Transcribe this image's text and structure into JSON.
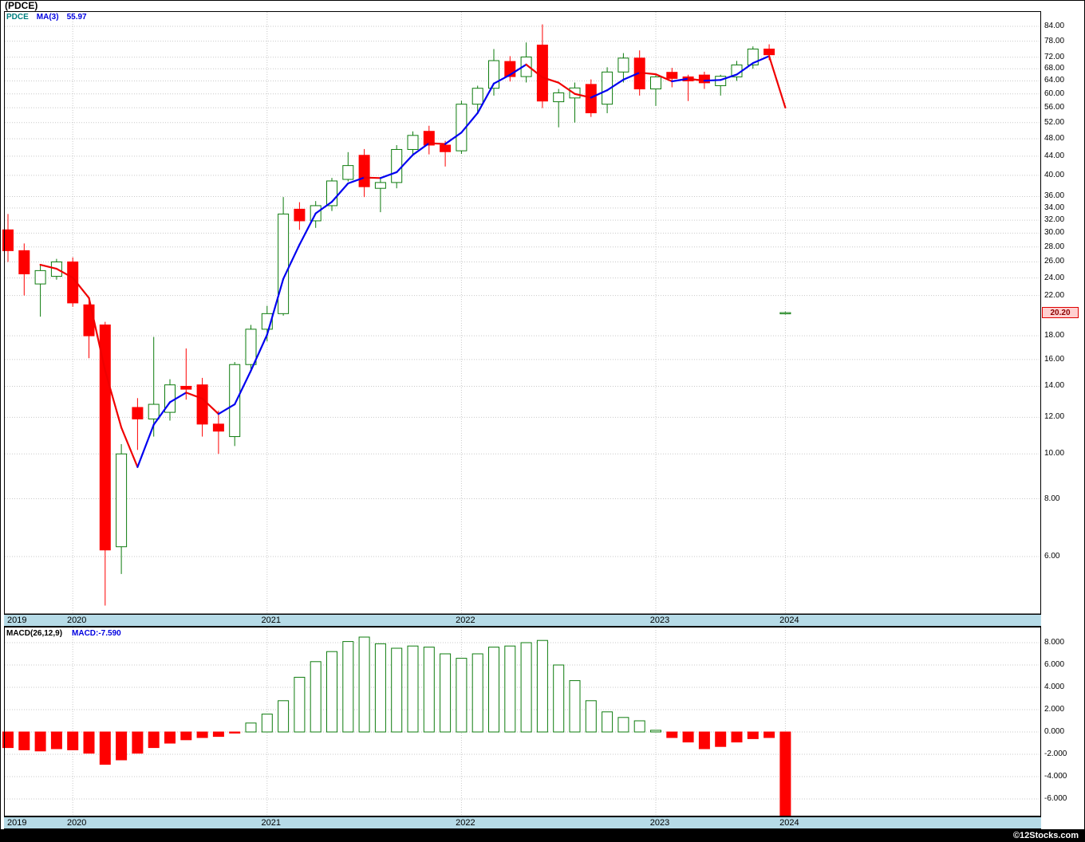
{
  "header": {
    "symbol_title": "(PDCE)",
    "legend": {
      "symbol": "PDCE",
      "ma_label": "MA(3)",
      "ma_value": "55.97"
    }
  },
  "macd_header": {
    "label": "MACD(26,12,9)",
    "value_label": "MACD:-7.590"
  },
  "footer": {
    "credit": "©12Stocks.com"
  },
  "colors": {
    "up_green": "#0e7c0e",
    "down_red": "#fe0000",
    "ma_up_blue": "#0000f0",
    "ma_down_red": "#f00000",
    "grid_gray": "#c9c9c9",
    "axis_band_blue": "#b6dbe7",
    "tag_bg": "#ffd0d0",
    "tag_border": "#e00000",
    "tag_text": "#8b0000",
    "symbol_teal": "#008080",
    "value_blue": "#0000e0",
    "footer_bg": "#000000",
    "footer_text": "#ffffff"
  },
  "price_axis": {
    "current_tag": "20.20",
    "current_price": 20.2,
    "ticks": [
      {
        "v": 84,
        "label": "84.00"
      },
      {
        "v": 78,
        "label": "78.00"
      },
      {
        "v": 72,
        "label": "72.00"
      },
      {
        "v": 68,
        "label": "68.00"
      },
      {
        "v": 64,
        "label": "64.00"
      },
      {
        "v": 60,
        "label": "60.00"
      },
      {
        "v": 56,
        "label": "56.00"
      },
      {
        "v": 52,
        "label": "52.00"
      },
      {
        "v": 48,
        "label": "48.00"
      },
      {
        "v": 44,
        "label": "44.00"
      },
      {
        "v": 40,
        "label": "40.00"
      },
      {
        "v": 36,
        "label": "36.00"
      },
      {
        "v": 34,
        "label": "34.00"
      },
      {
        "v": 32,
        "label": "32.00"
      },
      {
        "v": 30,
        "label": "30.00"
      },
      {
        "v": 28,
        "label": "28.00"
      },
      {
        "v": 26,
        "label": "26.00"
      },
      {
        "v": 24,
        "label": "24.00"
      },
      {
        "v": 22,
        "label": "22.00"
      },
      {
        "v": 18,
        "label": "18.00"
      },
      {
        "v": 16,
        "label": "16.00"
      },
      {
        "v": 14,
        "label": "14.00"
      },
      {
        "v": 12,
        "label": "12.00"
      },
      {
        "v": 10,
        "label": "10.00"
      },
      {
        "v": 8,
        "label": "8.00"
      },
      {
        "v": 6,
        "label": "6.00"
      }
    ]
  },
  "macd_axis": {
    "ticks": [
      {
        "v": 8,
        "label": "8.000"
      },
      {
        "v": 6,
        "label": "6.000"
      },
      {
        "v": 4,
        "label": "4.000"
      },
      {
        "v": 2,
        "label": "2.000"
      },
      {
        "v": 0,
        "label": "0.000"
      },
      {
        "v": -2,
        "label": "-2.000"
      },
      {
        "v": -4,
        "label": "-4.000"
      },
      {
        "v": -6,
        "label": "-6.000"
      }
    ]
  },
  "x_axis": {
    "years": [
      {
        "label": "2019",
        "slot": 0,
        "grid": false
      },
      {
        "label": "2020",
        "slot": 4,
        "grid": true
      },
      {
        "label": "2021",
        "slot": 16,
        "grid": true
      },
      {
        "label": "2022",
        "slot": 28,
        "grid": true
      },
      {
        "label": "2023",
        "slot": 40,
        "grid": true
      },
      {
        "label": "2024",
        "slot": 48,
        "grid": true
      }
    ]
  },
  "chart_data": [
    {
      "type": "candlestick",
      "symbol": "PDCE",
      "panel": "price",
      "yscale": "log",
      "ylim": [
        4.5,
        90
      ],
      "overlay_ma": {
        "name": "MA(3)",
        "last_value": 55.97,
        "style": "blue-rising-red-falling"
      },
      "x": [
        "2019-09",
        "2019-10",
        "2019-11",
        "2019-12",
        "2020-01",
        "2020-02",
        "2020-03",
        "2020-04",
        "2020-05",
        "2020-06",
        "2020-07",
        "2020-08",
        "2020-09",
        "2020-10",
        "2020-11",
        "2020-12",
        "2021-01",
        "2021-02",
        "2021-03",
        "2021-04",
        "2021-05",
        "2021-06",
        "2021-07",
        "2021-08",
        "2021-09",
        "2021-10",
        "2021-11",
        "2021-12",
        "2022-01",
        "2022-02",
        "2022-03",
        "2022-04",
        "2022-05",
        "2022-06",
        "2022-07",
        "2022-08",
        "2022-09",
        "2022-10",
        "2022-11",
        "2022-12",
        "2023-01",
        "2023-02",
        "2023-03",
        "2023-04",
        "2023-05",
        "2023-06",
        "2023-07",
        "2023-08",
        "2024-01"
      ],
      "ohlc": [
        [
          30.5,
          33.0,
          26.0,
          27.5
        ],
        [
          27.5,
          28.5,
          22.0,
          24.5
        ],
        [
          23.3,
          25.6,
          19.8,
          24.9
        ],
        [
          24.2,
          26.4,
          23.8,
          26.0
        ],
        [
          26.0,
          26.6,
          20.8,
          21.2
        ],
        [
          21.0,
          21.5,
          16.1,
          18.0
        ],
        [
          19.0,
          19.3,
          4.7,
          6.2
        ],
        [
          6.3,
          10.5,
          5.5,
          10.0
        ],
        [
          12.6,
          13.2,
          10.2,
          11.9
        ],
        [
          11.9,
          17.9,
          10.9,
          12.8
        ],
        [
          12.3,
          14.5,
          11.8,
          14.1
        ],
        [
          14.0,
          16.9,
          13.1,
          13.8
        ],
        [
          14.1,
          14.6,
          10.9,
          11.6
        ],
        [
          11.6,
          12.4,
          10.0,
          11.2
        ],
        [
          10.9,
          15.8,
          10.4,
          15.6
        ],
        [
          15.6,
          19.0,
          15.0,
          18.6
        ],
        [
          18.6,
          20.9,
          17.5,
          20.1
        ],
        [
          20.1,
          35.9,
          19.9,
          33.0
        ],
        [
          33.8,
          35.0,
          30.5,
          31.9
        ],
        [
          31.9,
          35.2,
          30.8,
          34.4
        ],
        [
          34.4,
          39.5,
          33.5,
          38.9
        ],
        [
          39.2,
          44.9,
          38.8,
          42.0
        ],
        [
          44.2,
          45.6,
          35.9,
          37.8
        ],
        [
          37.5,
          39.3,
          33.3,
          38.6
        ],
        [
          38.6,
          46.5,
          37.5,
          45.5
        ],
        [
          45.5,
          49.8,
          44.0,
          48.8
        ],
        [
          49.8,
          51.2,
          44.4,
          46.5
        ],
        [
          46.5,
          47.5,
          41.8,
          45.0
        ],
        [
          45.2,
          58.0,
          44.5,
          57.0
        ],
        [
          57.0,
          62.5,
          54.5,
          61.7
        ],
        [
          61.7,
          75.0,
          59.5,
          70.8
        ],
        [
          70.5,
          72.4,
          63.8,
          65.4
        ],
        [
          65.4,
          77.5,
          63.5,
          72.1
        ],
        [
          76.5,
          84.8,
          55.9,
          57.9
        ],
        [
          57.7,
          61.5,
          50.8,
          60.3
        ],
        [
          58.8,
          63.5,
          52.0,
          61.8
        ],
        [
          62.9,
          64.5,
          53.5,
          54.6
        ],
        [
          57.0,
          68.5,
          54.5,
          66.9
        ],
        [
          66.9,
          73.5,
          63.5,
          71.7
        ],
        [
          71.7,
          74.5,
          59.5,
          61.5
        ],
        [
          61.5,
          65.8,
          56.5,
          65.3
        ],
        [
          66.8,
          68.3,
          62.0,
          64.8
        ],
        [
          65.3,
          66.0,
          57.9,
          64.0
        ],
        [
          65.9,
          67.0,
          61.5,
          63.4
        ],
        [
          62.5,
          66.0,
          59.5,
          65.5
        ],
        [
          65.3,
          70.7,
          64.0,
          69.3
        ],
        [
          69.3,
          76.0,
          68.0,
          75.0
        ],
        [
          75.0,
          76.8,
          71.0,
          72.9
        ],
        [
          20.2,
          20.3,
          20.0,
          20.2
        ]
      ]
    },
    {
      "type": "bar",
      "panel": "macd",
      "name": "MACD(26,12,9)",
      "last_value": -7.59,
      "ylim": [
        -8,
        9
      ],
      "values": [
        -1.4,
        -1.6,
        -1.7,
        -1.5,
        -1.6,
        -1.9,
        -2.9,
        -2.5,
        -1.9,
        -1.4,
        -1.0,
        -0.7,
        -0.5,
        -0.4,
        -0.1,
        0.8,
        1.6,
        2.8,
        4.9,
        6.3,
        7.2,
        8.1,
        8.5,
        7.9,
        7.5,
        7.7,
        7.6,
        7.0,
        6.6,
        7.0,
        7.6,
        7.7,
        8.0,
        8.2,
        6.0,
        4.6,
        2.8,
        1.8,
        1.3,
        1.0,
        0.15,
        -0.5,
        -0.9,
        -1.5,
        -1.3,
        -0.9,
        -0.6,
        -0.5,
        -7.59
      ]
    }
  ]
}
